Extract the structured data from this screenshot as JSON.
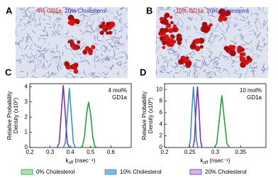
{
  "panels": [
    {
      "label": "A",
      "caption": [
        "4% GD1a,",
        "20% Cholesterol"
      ]
    },
    {
      "label": "B",
      "caption": [
        "10% GD1a,",
        "20% Cholesterol"
      ]
    }
  ],
  "chart_data": [
    {
      "type": "line",
      "panel": "C",
      "ylabel": [
        "Relative Probability",
        "Density (x10⁰)"
      ],
      "xlabel": {
        "main": "k",
        "sub": "off",
        "rest": " (nsec⁻¹)"
      },
      "annotation": [
        "4 mol%",
        "GD1a"
      ],
      "xlim": [
        0.2,
        0.7
      ],
      "xticks": [
        0.2,
        0.3,
        0.4,
        0.5,
        0.6
      ],
      "ylim": [
        0,
        4.2
      ],
      "yticks": [
        0,
        1,
        2,
        3,
        4
      ],
      "series": [
        {
          "name": "0% Cholesterol",
          "color": "#22a33a",
          "x": [
            0.45,
            0.46,
            0.47,
            0.48,
            0.49,
            0.5,
            0.51,
            0.52,
            0.53
          ],
          "values": [
            0,
            0.1,
            0.75,
            2.2,
            3,
            2.2,
            0.75,
            0.1,
            0
          ]
        },
        {
          "name": "10% Cholesterol",
          "color": "#3a8fd8",
          "x": [
            0.365,
            0.375,
            0.385,
            0.395,
            0.405,
            0.415,
            0.425
          ],
          "values": [
            0,
            0.3,
            2.1,
            3.9,
            2.1,
            0.3,
            0
          ]
        },
        {
          "name": "20% Cholesterol",
          "color": "#7b2fbf",
          "x": [
            0.335,
            0.345,
            0.355,
            0.365,
            0.375,
            0.385,
            0.395
          ],
          "values": [
            0,
            0.3,
            2.2,
            4.1,
            2.2,
            0.3,
            0
          ]
        }
      ]
    },
    {
      "type": "line",
      "panel": "D",
      "ylabel": [
        "Relative Probability",
        "Density (x10⁰)"
      ],
      "xlabel": {
        "main": "k",
        "sub": "off",
        "rest": " (nsec⁻¹)"
      },
      "annotation": [
        "10 mol%",
        "GD1a"
      ],
      "xlim": [
        0.2,
        0.4
      ],
      "xticks": [
        0.2,
        0.25,
        0.3,
        0.35
      ],
      "ylim": [
        0,
        11
      ],
      "yticks": [
        0,
        2,
        4,
        6,
        8,
        10
      ],
      "series": [
        {
          "name": "0% Cholesterol",
          "color": "#22a33a",
          "x": [
            0.298,
            0.303,
            0.308,
            0.313,
            0.318,
            0.323,
            0.328
          ],
          "values": [
            0,
            0.7,
            4.8,
            9,
            4.8,
            0.7,
            0
          ]
        },
        {
          "name": "10% Cholesterol",
          "color": "#3a8fd8",
          "x": [
            0.248,
            0.251,
            0.254,
            0.257,
            0.26,
            0.263,
            0.266
          ],
          "values": [
            0,
            1.2,
            6.5,
            10.5,
            6.5,
            1.2,
            0
          ]
        },
        {
          "name": "20% Cholesterol",
          "color": "#7b2fbf",
          "x": [
            0.256,
            0.259,
            0.262,
            0.265,
            0.268,
            0.271,
            0.274
          ],
          "values": [
            0,
            1.2,
            6.5,
            10.5,
            6.5,
            1.2,
            0
          ]
        }
      ]
    }
  ]
}
